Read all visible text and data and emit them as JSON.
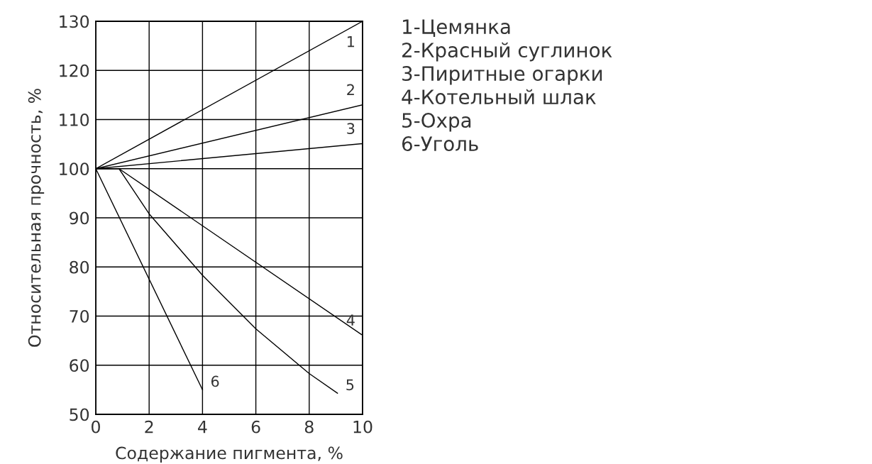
{
  "chart_data": {
    "type": "line",
    "xlabel": "Содержание пигмента, %",
    "ylabel": "Относительная прочность, %",
    "xlim": [
      0,
      10
    ],
    "ylim": [
      50,
      130
    ],
    "xticks": [
      0,
      2,
      4,
      6,
      8,
      10
    ],
    "yticks": [
      50,
      60,
      70,
      80,
      90,
      100,
      110,
      120,
      130
    ],
    "grid": true,
    "marker": "none",
    "line_style": "solid",
    "series": [
      {
        "name": "1",
        "color": "#000000",
        "x": [
          0,
          10
        ],
        "values": [
          100,
          130
        ]
      },
      {
        "name": "2",
        "color": "#000000",
        "x": [
          0,
          10
        ],
        "values": [
          100,
          113
        ]
      },
      {
        "name": "3",
        "color": "#000000",
        "x": [
          0,
          10
        ],
        "values": [
          100,
          105.1
        ]
      },
      {
        "name": "4",
        "color": "#000000",
        "x": [
          0,
          0.87,
          10
        ],
        "values": [
          100,
          100,
          66.1
        ]
      },
      {
        "name": "5",
        "color": "#000000",
        "x": [
          0,
          0.87,
          2,
          4,
          6,
          8,
          9.06
        ],
        "values": [
          100,
          100,
          90.8,
          78.3,
          67.4,
          58.3,
          54.3
        ]
      },
      {
        "name": "6",
        "color": "#000000",
        "x": [
          0,
          4
        ],
        "values": [
          100,
          55
        ]
      }
    ],
    "annotations": [
      "1-Цемянка",
      "2-Красный суглинок",
      "3-Пиритные огарки",
      "4-Котельный шлак",
      "5-Охра",
      "6-Уголь"
    ]
  }
}
